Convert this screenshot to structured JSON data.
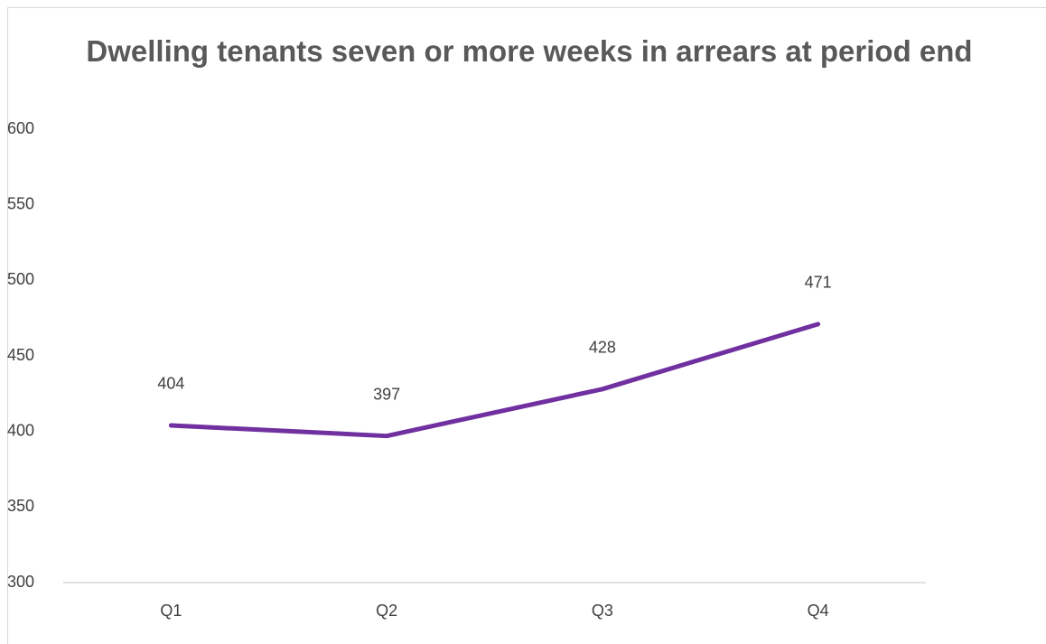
{
  "chart_data": {
    "type": "line",
    "title": "Dwelling tenants seven or more weeks in arrears at period end",
    "categories": [
      "Q1",
      "Q2",
      "Q3",
      "Q4"
    ],
    "values": [
      404,
      397,
      428,
      471
    ],
    "color": "#7030a0",
    "ylim": [
      300,
      600
    ],
    "yticks": [
      300,
      350,
      400,
      450,
      500,
      550,
      600
    ],
    "grid": false
  }
}
